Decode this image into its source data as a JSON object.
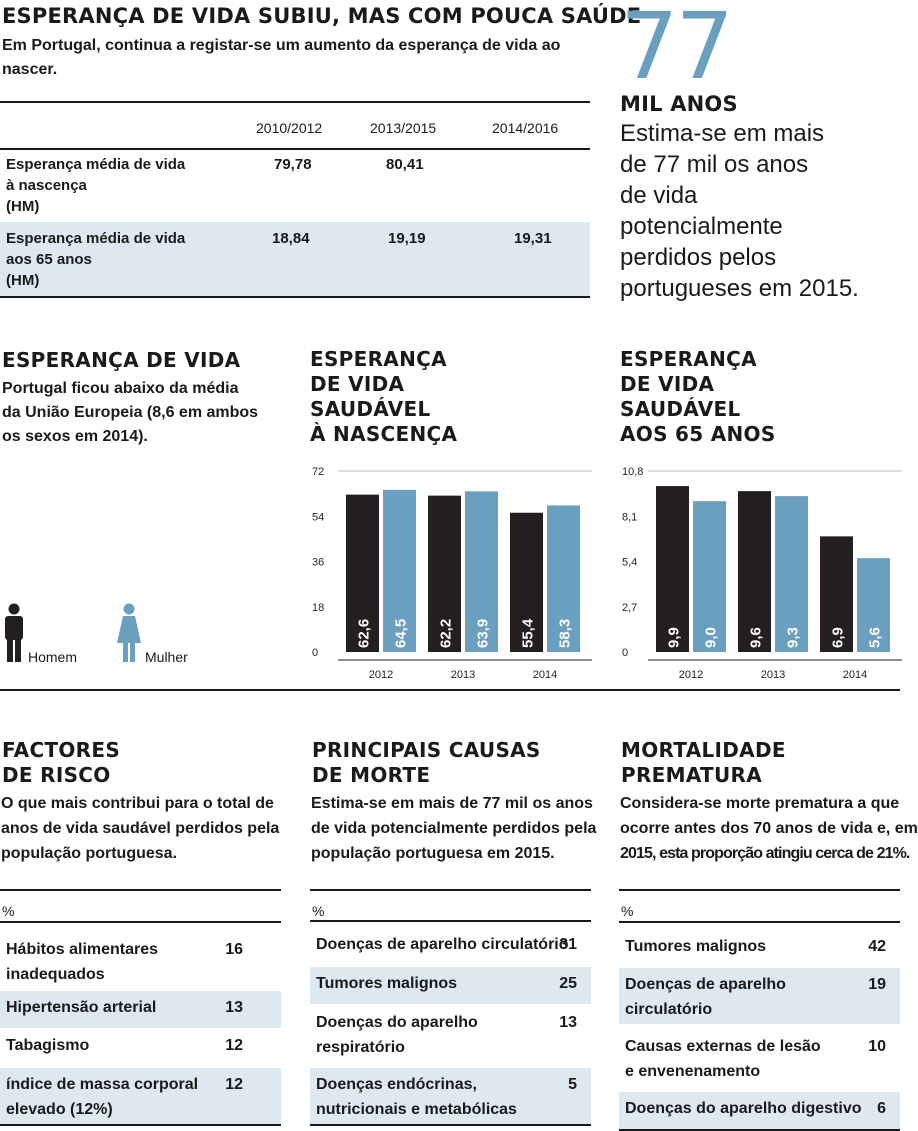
{
  "colors": {
    "dark": "#231f20",
    "blue": "#6b9fbf",
    "band": "#dde8f0"
  },
  "top": {
    "title": "ESPERANÇA DE VIDA SUBIU, MAS COM POUCA SAÚDE",
    "subtitle": "Em Portugal, continua a registar-se um aumento da esperança de vida ao nascer.",
    "table": {
      "columns": [
        "2010/2012",
        "2013/2015",
        "2014/2016"
      ],
      "rows": [
        {
          "label_lines": [
            "Esperança média de vida",
            "à nascença",
            "(HM)"
          ],
          "values": [
            "79,78",
            "80,41",
            ""
          ]
        },
        {
          "label_lines": [
            "Esperança média de vida",
            "aos 65 anos",
            "(HM)"
          ],
          "values": [
            "18,84",
            "19,19",
            "19,31"
          ]
        }
      ]
    }
  },
  "callout": {
    "number": "77",
    "unit": "MIL ANOS",
    "text_lines": [
      "Estima-se em mais",
      "de 77 mil os anos",
      "de vida",
      "potencialmente",
      "perdidos pelos",
      "portugueses em 2015."
    ]
  },
  "life": {
    "title": "ESPERANÇA DE VIDA",
    "text_lines": [
      "Portugal ficou abaixo da média",
      "da União Europeia (8,6 em ambos",
      "os sexos em 2014)."
    ],
    "legend": {
      "male": "Homem",
      "female": "Mulher",
      "male_icon": "man-icon",
      "female_icon": "woman-icon"
    }
  },
  "chart_data": [
    {
      "type": "bar",
      "title_lines": [
        "ESPERANÇA",
        "DE VIDA",
        "SAUDÁVEL",
        "À NASCENÇA"
      ],
      "categories": [
        "2012",
        "2013",
        "2014"
      ],
      "series": [
        {
          "name": "Homem",
          "values": [
            62.6,
            62.2,
            55.4
          ],
          "labels": [
            "62,6",
            "62,2",
            "55,4"
          ]
        },
        {
          "name": "Mulher",
          "values": [
            64.5,
            63.9,
            58.3
          ],
          "labels": [
            "64,5",
            "63,9",
            "58,3"
          ]
        }
      ],
      "yticks": [
        "0",
        "18",
        "36",
        "54",
        "72"
      ],
      "ylim": [
        0,
        72
      ],
      "grid": false
    },
    {
      "type": "bar",
      "title_lines": [
        "ESPERANÇA",
        "DE VIDA",
        "SAUDÁVEL",
        "AOS 65 ANOS"
      ],
      "categories": [
        "2012",
        "2013",
        "2014"
      ],
      "series": [
        {
          "name": "Homem",
          "values": [
            9.9,
            9.6,
            6.9
          ],
          "labels": [
            "9,9",
            "9,6",
            "6,9"
          ]
        },
        {
          "name": "Mulher",
          "values": [
            9.0,
            9.3,
            5.6
          ],
          "labels": [
            "9,0",
            "9,3",
            "5,6"
          ]
        }
      ],
      "yticks": [
        "0",
        "2,7",
        "5,4",
        "8,1",
        "10,8"
      ],
      "ylim": [
        0,
        10.8
      ],
      "grid": false
    }
  ],
  "bottom": [
    {
      "title_lines": [
        "FACTORES",
        "DE RISCO"
      ],
      "text_lines": [
        "O que mais contribui para o total de",
        "anos de vida saudável perdidos pela",
        "população portuguesa."
      ],
      "unit": "%",
      "rows": [
        {
          "lines": [
            "Hábitos alimentares",
            "inadequados"
          ],
          "value": "16"
        },
        {
          "lines": [
            "Hipertensão arterial"
          ],
          "value": "13"
        },
        {
          "lines": [
            "Tabagismo"
          ],
          "value": "12"
        },
        {
          "lines": [
            "índice de massa corporal",
            "elevado (12%)"
          ],
          "value": "12"
        }
      ]
    },
    {
      "title_lines": [
        "PRINCIPAIS CAUSAS",
        "DE MORTE"
      ],
      "text_lines": [
        "Estima-se em mais de 77 mil os anos",
        "de vida potencialmente perdidos pela",
        "população portuguesa em 2015."
      ],
      "unit": "%",
      "rows": [
        {
          "lines": [
            "Doenças de aparelho circulatório"
          ],
          "value": "31"
        },
        {
          "lines": [
            "Tumores malignos"
          ],
          "value": "25"
        },
        {
          "lines": [
            "Doenças do aparelho",
            "respiratório"
          ],
          "value": "13"
        },
        {
          "lines": [
            "Doenças endócrinas,",
            "nutricionais e metabólicas"
          ],
          "value": "5"
        }
      ]
    },
    {
      "title_lines": [
        "MORTALIDADE",
        "PREMATURA"
      ],
      "text_lines": [
        "Considera-se morte prematura a que",
        "ocorre antes dos 70 anos de vida e, em",
        "2015, esta proporção atingiu cerca de 21%."
      ],
      "unit": "%",
      "rows": [
        {
          "lines": [
            "Tumores malignos"
          ],
          "value": "42"
        },
        {
          "lines": [
            "Doenças de aparelho",
            "circulatório"
          ],
          "value": "19"
        },
        {
          "lines": [
            "Causas externas de lesão",
            "e envenenamento"
          ],
          "value": "10"
        },
        {
          "lines": [
            "Doenças do aparelho digestivo"
          ],
          "value": "6"
        }
      ]
    }
  ]
}
